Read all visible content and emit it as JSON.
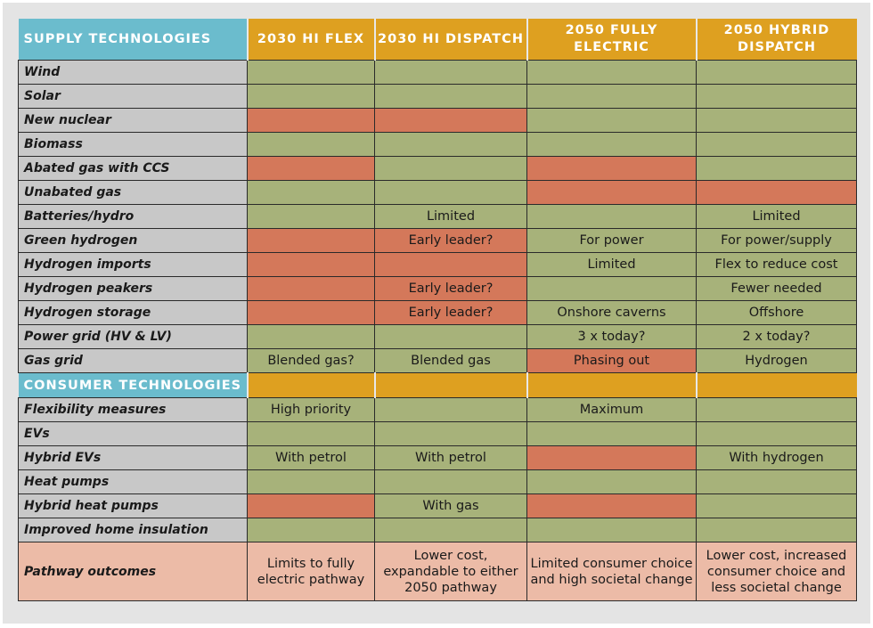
{
  "colors": {
    "green": "#a7b27a",
    "red": "#d4785a",
    "teal": "#6bbccd",
    "orange": "#dea020",
    "gray": "#c8c8c8",
    "pink": "#ecbba7"
  },
  "header": {
    "section": "SUPPLY TECHNOLOGIES",
    "columns": [
      "2030 HI FLEX",
      "2030 HI DISPATCH",
      "2050 FULLY ELECTRIC",
      "2050 HYBRID DISPATCH"
    ]
  },
  "supply_rows": [
    {
      "label": "Wind",
      "cells": [
        [
          "g",
          ""
        ],
        [
          "g",
          ""
        ],
        [
          "g",
          ""
        ],
        [
          "g",
          ""
        ]
      ]
    },
    {
      "label": "Solar",
      "cells": [
        [
          "g",
          ""
        ],
        [
          "g",
          ""
        ],
        [
          "g",
          ""
        ],
        [
          "g",
          ""
        ]
      ]
    },
    {
      "label": "New nuclear",
      "cells": [
        [
          "r",
          ""
        ],
        [
          "r",
          ""
        ],
        [
          "g",
          ""
        ],
        [
          "g",
          ""
        ]
      ]
    },
    {
      "label": "Biomass",
      "cells": [
        [
          "g",
          ""
        ],
        [
          "g",
          ""
        ],
        [
          "g",
          ""
        ],
        [
          "g",
          ""
        ]
      ]
    },
    {
      "label": "Abated gas with CCS",
      "cells": [
        [
          "r",
          ""
        ],
        [
          "g",
          ""
        ],
        [
          "r",
          ""
        ],
        [
          "g",
          ""
        ]
      ]
    },
    {
      "label": "Unabated gas",
      "cells": [
        [
          "g",
          ""
        ],
        [
          "g",
          ""
        ],
        [
          "r",
          ""
        ],
        [
          "r",
          ""
        ]
      ]
    },
    {
      "label": "Batteries/hydro",
      "cells": [
        [
          "g",
          ""
        ],
        [
          "g",
          "Limited"
        ],
        [
          "g",
          ""
        ],
        [
          "g",
          "Limited"
        ]
      ]
    },
    {
      "label": "Green hydrogen",
      "cells": [
        [
          "r",
          ""
        ],
        [
          "r",
          "Early leader?"
        ],
        [
          "g",
          "For power"
        ],
        [
          "g",
          "For power/supply"
        ]
      ]
    },
    {
      "label": "Hydrogen imports",
      "cells": [
        [
          "r",
          ""
        ],
        [
          "r",
          ""
        ],
        [
          "g",
          "Limited"
        ],
        [
          "g",
          "Flex to reduce cost"
        ]
      ]
    },
    {
      "label": "Hydrogen peakers",
      "cells": [
        [
          "r",
          ""
        ],
        [
          "r",
          "Early leader?"
        ],
        [
          "g",
          ""
        ],
        [
          "g",
          "Fewer needed"
        ]
      ]
    },
    {
      "label": "Hydrogen storage",
      "cells": [
        [
          "r",
          ""
        ],
        [
          "r",
          "Early leader?"
        ],
        [
          "g",
          "Onshore caverns"
        ],
        [
          "g",
          "Offshore"
        ]
      ]
    },
    {
      "label": "Power grid (HV & LV)",
      "cells": [
        [
          "g",
          ""
        ],
        [
          "g",
          ""
        ],
        [
          "g",
          "3 x today?"
        ],
        [
          "g",
          "2 x today?"
        ]
      ]
    },
    {
      "label": "Gas grid",
      "cells": [
        [
          "g",
          "Blended gas?"
        ],
        [
          "g",
          "Blended gas"
        ],
        [
          "r",
          "Phasing out"
        ],
        [
          "g",
          "Hydrogen"
        ]
      ]
    }
  ],
  "consumer_section": "CONSUMER TECHNOLOGIES",
  "consumer_rows": [
    {
      "label": "Flexibility measures",
      "cells": [
        [
          "g",
          "High priority"
        ],
        [
          "g",
          ""
        ],
        [
          "g",
          "Maximum"
        ],
        [
          "g",
          ""
        ]
      ]
    },
    {
      "label": "EVs",
      "cells": [
        [
          "g",
          ""
        ],
        [
          "g",
          ""
        ],
        [
          "g",
          ""
        ],
        [
          "g",
          ""
        ]
      ]
    },
    {
      "label": "Hybrid EVs",
      "cells": [
        [
          "g",
          "With petrol"
        ],
        [
          "g",
          "With petrol"
        ],
        [
          "r",
          ""
        ],
        [
          "g",
          "With hydrogen"
        ]
      ]
    },
    {
      "label": "Heat pumps",
      "cells": [
        [
          "g",
          ""
        ],
        [
          "g",
          ""
        ],
        [
          "g",
          ""
        ],
        [
          "g",
          ""
        ]
      ]
    },
    {
      "label": "Hybrid heat pumps",
      "cells": [
        [
          "r",
          ""
        ],
        [
          "g",
          "With gas"
        ],
        [
          "r",
          ""
        ],
        [
          "g",
          ""
        ]
      ]
    },
    {
      "label": "Improved home insulation",
      "cells": [
        [
          "g",
          ""
        ],
        [
          "g",
          ""
        ],
        [
          "g",
          ""
        ],
        [
          "g",
          ""
        ]
      ]
    }
  ],
  "outcomes": {
    "label": "Pathway outcomes",
    "cells": [
      "Limits to fully electric pathway",
      "Lower cost, expandable to either 2050 pathway",
      "Limited consumer choice and high societal change",
      "Lower cost, increased consumer choice and less societal change"
    ]
  }
}
